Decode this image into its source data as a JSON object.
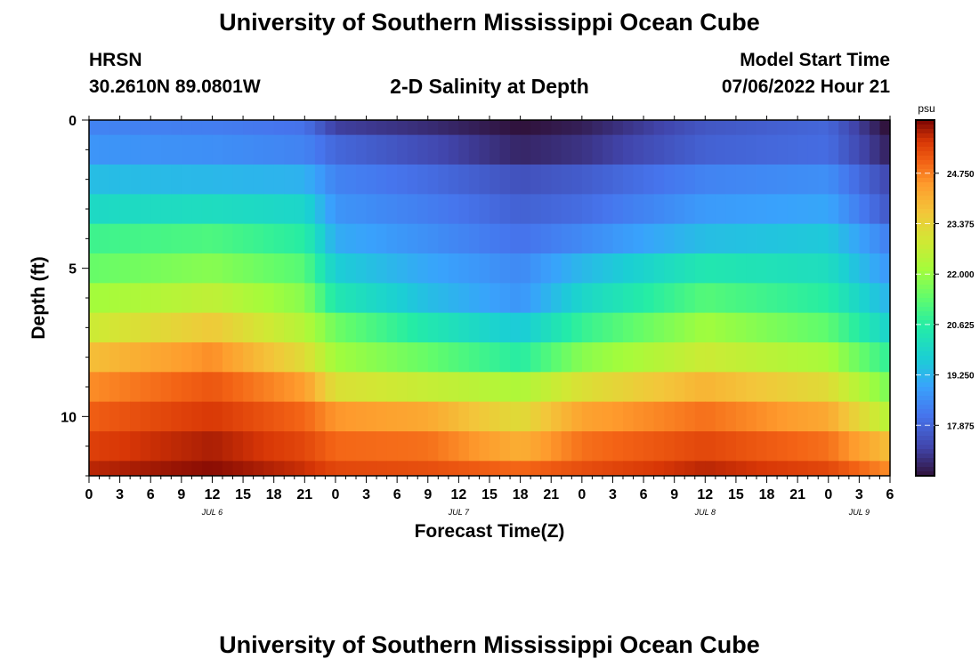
{
  "page": {
    "title": "University of Southern Mississippi Ocean Cube",
    "footer_title": "University of Southern Mississippi Ocean Cube",
    "station": "HRSN",
    "coords": "30.2610N  89.0801W",
    "subtitle": "2-D Salinity at Depth",
    "model_start_label": "Model Start Time",
    "model_start_value": "07/06/2022 Hour 21"
  },
  "chart_data": {
    "type": "heatmap",
    "title": "2-D Salinity at Depth",
    "xlabel": "Forecast Time(Z)",
    "ylabel": "Depth (ft)",
    "ylim": [
      0,
      12
    ],
    "y_ticks": [
      "0",
      "5",
      "10"
    ],
    "x_ticks": [
      "0",
      "3",
      "6",
      "9",
      "12",
      "15",
      "18",
      "21",
      "0",
      "3",
      "6",
      "9",
      "12",
      "15",
      "18",
      "21",
      "0",
      "3",
      "6",
      "9",
      "12",
      "15",
      "18",
      "21",
      "0",
      "3",
      "6"
    ],
    "x_hours": [
      0,
      3,
      6,
      9,
      12,
      15,
      18,
      21,
      24,
      27,
      30,
      33,
      36,
      39,
      42,
      45,
      48,
      51,
      54,
      57,
      60,
      63,
      66,
      69,
      72,
      75,
      78
    ],
    "day_labels": [
      {
        "label": "JUL 6",
        "hour": 12
      },
      {
        "label": "JUL 7",
        "hour": 36
      },
      {
        "label": "JUL 8",
        "hour": 60
      },
      {
        "label": "JUL 9",
        "hour": 75
      }
    ],
    "x_range_hours": [
      0,
      78
    ],
    "colorbar": {
      "unit": "psu",
      "min": 16.5,
      "max": 26.2,
      "ticks": [
        "24.750",
        "23.375",
        "22.000",
        "20.625",
        "19.250",
        "17.875"
      ],
      "tick_values": [
        24.75,
        23.375,
        22.0,
        20.625,
        19.25,
        17.875
      ]
    },
    "depth_levels_ft": [
      0,
      1,
      2,
      3,
      4,
      5,
      6,
      7,
      8,
      9,
      10,
      11,
      12
    ],
    "time_keys_hours": [
      0,
      12,
      21,
      24,
      33,
      42,
      48,
      60,
      72,
      78
    ],
    "salinity": [
      [
        18.4,
        18.3,
        18.1,
        17.2,
        16.9,
        16.5,
        16.7,
        17.6,
        17.9,
        16.4
      ],
      [
        18.7,
        18.6,
        18.4,
        17.9,
        17.4,
        16.8,
        17.0,
        17.8,
        18.0,
        16.7
      ],
      [
        19.4,
        19.3,
        19.2,
        18.4,
        18.0,
        17.5,
        17.7,
        18.4,
        18.6,
        17.3
      ],
      [
        20.0,
        20.1,
        19.9,
        18.7,
        18.3,
        17.8,
        18.0,
        18.8,
        19.0,
        17.6
      ],
      [
        20.9,
        21.1,
        20.6,
        19.1,
        18.6,
        18.1,
        18.5,
        19.4,
        19.6,
        18.3
      ],
      [
        21.4,
        21.8,
        21.2,
        19.7,
        19.0,
        18.5,
        19.3,
        20.4,
        20.1,
        18.7
      ],
      [
        22.1,
        22.6,
        21.8,
        20.4,
        19.4,
        18.7,
        19.9,
        21.2,
        20.6,
        19.2
      ],
      [
        22.8,
        23.6,
        22.4,
        21.5,
        20.4,
        19.6,
        20.8,
        22.1,
        21.3,
        19.8
      ],
      [
        23.8,
        24.6,
        23.2,
        22.1,
        21.4,
        20.6,
        21.8,
        22.8,
        22.2,
        20.7
      ],
      [
        24.6,
        25.2,
        24.4,
        23.1,
        22.7,
        22.3,
        23.1,
        24.0,
        23.2,
        21.6
      ],
      [
        25.1,
        25.6,
        25.0,
        24.5,
        24.2,
        23.2,
        24.3,
        24.9,
        24.2,
        22.4
      ],
      [
        25.5,
        25.9,
        25.4,
        25.0,
        24.9,
        24.1,
        24.9,
        25.4,
        24.9,
        23.8
      ],
      [
        25.8,
        26.1,
        25.7,
        25.4,
        25.3,
        25.0,
        25.3,
        25.8,
        25.4,
        24.6
      ]
    ]
  }
}
